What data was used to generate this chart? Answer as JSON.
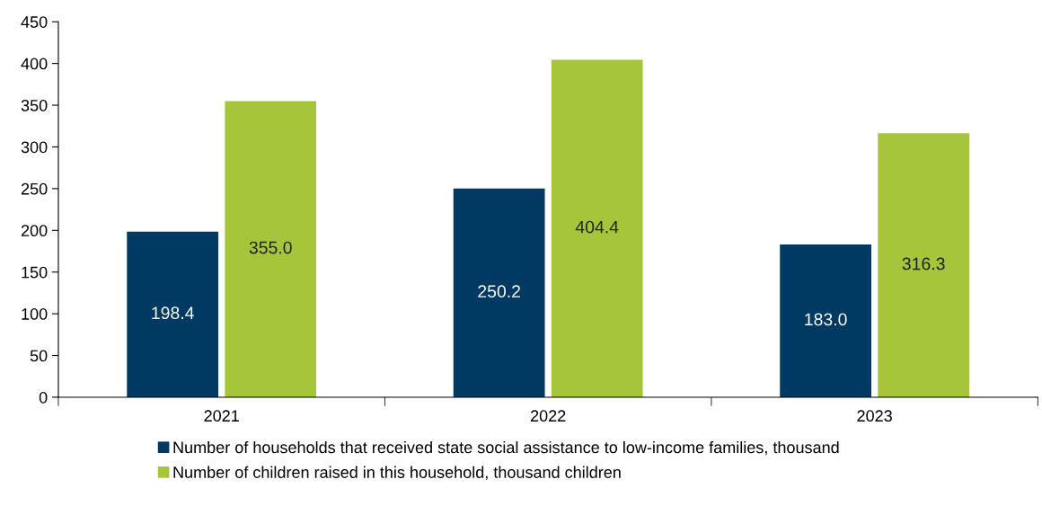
{
  "chart_data": {
    "type": "bar",
    "categories": [
      "2021",
      "2022",
      "2023"
    ],
    "series": [
      {
        "name": "Number of households that received state social assistance to low-income families, thousand",
        "color": "#003a63",
        "values": [
          198.4,
          250.2,
          183.0
        ],
        "value_labels": [
          "198.4",
          "250.2",
          "183.0"
        ]
      },
      {
        "name": "Number of children raised in this household, thousand children",
        "color": "#a6c53a",
        "values": [
          355.0,
          404.4,
          316.3
        ],
        "value_labels": [
          "355.0",
          "404.4",
          "316.3"
        ]
      }
    ],
    "ylim": [
      0,
      450
    ],
    "yticks": [
      0,
      50,
      100,
      150,
      200,
      250,
      300,
      350,
      400,
      450
    ],
    "grid": false,
    "legend": "bottom"
  }
}
